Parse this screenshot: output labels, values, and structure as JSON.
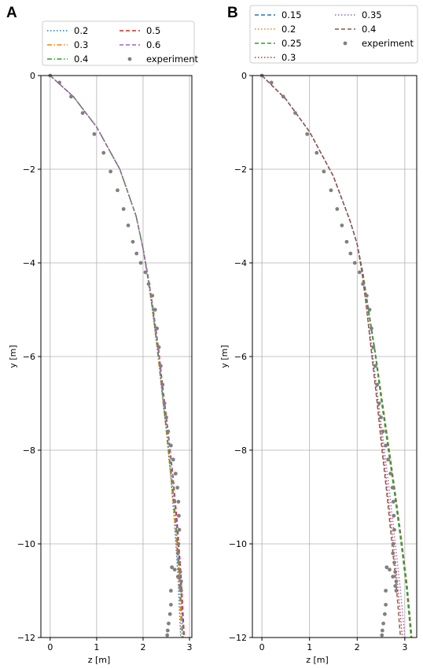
{
  "chart_data": [
    {
      "panel": "A",
      "type": "line",
      "xlabel": "z [m]",
      "ylabel": "y [m]",
      "xlim": [
        -0.2,
        3.05
      ],
      "ylim": [
        -12,
        0
      ],
      "xticks": [
        0,
        1,
        2,
        3
      ],
      "yticks": [
        0,
        -2,
        -4,
        -6,
        -8,
        -10,
        -12
      ],
      "grid": true,
      "legend_position": "above",
      "series": [
        {
          "name": "0.2",
          "style": "dotted",
          "color": "#1f77b4",
          "x": [
            0.0,
            0.5,
            1.0,
            1.5,
            1.85,
            2.0,
            2.1,
            2.2,
            2.3,
            2.4,
            2.5,
            2.6,
            2.68,
            2.75,
            2.81
          ],
          "y": [
            0.0,
            -0.45,
            -1.1,
            -2.0,
            -3.0,
            -3.7,
            -4.3,
            -5.0,
            -5.8,
            -6.7,
            -7.6,
            -8.6,
            -9.6,
            -10.7,
            -12.0
          ]
        },
        {
          "name": "0.3",
          "style": "dashdot",
          "color": "#ff7f0e",
          "x": [
            0.0,
            0.5,
            1.0,
            1.5,
            1.85,
            2.0,
            2.1,
            2.2,
            2.3,
            2.4,
            2.5,
            2.6,
            2.69,
            2.77,
            2.83
          ],
          "y": [
            0.0,
            -0.45,
            -1.1,
            -2.0,
            -3.0,
            -3.7,
            -4.3,
            -5.0,
            -5.8,
            -6.7,
            -7.6,
            -8.6,
            -9.6,
            -10.7,
            -12.0
          ]
        },
        {
          "name": "0.4",
          "style": "dashdot",
          "color": "#2ca02c",
          "x": [
            0.0,
            0.5,
            1.0,
            1.5,
            1.85,
            2.0,
            2.1,
            2.21,
            2.31,
            2.41,
            2.51,
            2.62,
            2.71,
            2.79,
            2.86
          ],
          "y": [
            0.0,
            -0.45,
            -1.1,
            -2.0,
            -3.0,
            -3.7,
            -4.3,
            -5.0,
            -5.8,
            -6.7,
            -7.6,
            -8.6,
            -9.6,
            -10.7,
            -12.0
          ]
        },
        {
          "name": "0.5",
          "style": "dashed",
          "color": "#d62728",
          "x": [
            0.0,
            0.5,
            1.0,
            1.5,
            1.85,
            2.0,
            2.11,
            2.22,
            2.33,
            2.43,
            2.54,
            2.65,
            2.74,
            2.82,
            2.89
          ],
          "y": [
            0.0,
            -0.45,
            -1.1,
            -2.0,
            -3.0,
            -3.7,
            -4.3,
            -5.0,
            -5.8,
            -6.7,
            -7.6,
            -8.6,
            -9.6,
            -10.7,
            -12.0
          ]
        },
        {
          "name": "0.6",
          "style": "dashed",
          "color": "#9467bd",
          "x": [
            0.0,
            0.5,
            1.0,
            1.5,
            1.85,
            2.0,
            2.11,
            2.22,
            2.32,
            2.42,
            2.53,
            2.64,
            2.72,
            2.8,
            2.87
          ],
          "y": [
            0.0,
            -0.45,
            -1.1,
            -2.0,
            -3.0,
            -3.7,
            -4.3,
            -5.0,
            -5.8,
            -6.7,
            -7.6,
            -8.6,
            -9.6,
            -10.7,
            -12.0
          ]
        }
      ],
      "experiment": {
        "name": "experiment",
        "color": "#808080",
        "x": [
          0.0,
          0.2,
          0.45,
          0.7,
          0.95,
          1.15,
          1.3,
          1.45,
          1.58,
          1.68,
          1.78,
          1.86,
          1.95,
          2.05,
          2.12,
          2.2,
          2.26,
          2.3,
          2.34,
          2.38,
          2.42,
          2.46,
          2.5,
          2.54,
          2.6,
          2.65,
          2.7,
          2.74,
          2.76,
          2.77,
          2.78,
          2.76,
          2.75,
          2.78,
          2.8,
          2.82,
          2.82,
          2.8,
          2.75,
          2.68,
          2.62,
          2.6,
          2.6,
          2.58,
          2.55,
          2.53,
          2.52
        ],
        "y": [
          0.0,
          -0.15,
          -0.45,
          -0.8,
          -1.25,
          -1.65,
          -2.05,
          -2.45,
          -2.85,
          -3.2,
          -3.55,
          -3.8,
          -4.0,
          -4.2,
          -4.45,
          -4.7,
          -5.0,
          -5.4,
          -5.8,
          -6.2,
          -6.6,
          -7.0,
          -7.3,
          -7.6,
          -7.9,
          -8.2,
          -8.5,
          -8.8,
          -9.1,
          -9.4,
          -9.7,
          -10.0,
          -10.2,
          -10.4,
          -10.6,
          -10.8,
          -11.0,
          -10.9,
          -10.7,
          -10.55,
          -10.5,
          -11.0,
          -11.3,
          -11.5,
          -11.7,
          -11.85,
          -11.95
        ]
      }
    },
    {
      "panel": "B",
      "type": "line",
      "xlabel": "z [m]",
      "ylabel": "y [m]",
      "xlim": [
        -0.2,
        3.25
      ],
      "ylim": [
        -12,
        0
      ],
      "xticks": [
        0,
        1,
        2,
        3
      ],
      "yticks": [
        0,
        -2,
        -4,
        -6,
        -8,
        -10,
        -12
      ],
      "grid": true,
      "legend_position": "above",
      "series": [
        {
          "name": "0.15",
          "style": "dashed",
          "color": "#1f77b4",
          "x": [
            0.0,
            0.5,
            1.0,
            1.5,
            1.85,
            2.0,
            2.12,
            2.24,
            2.38,
            2.52,
            2.66,
            2.8,
            2.93,
            3.05,
            3.15
          ],
          "y": [
            0.0,
            -0.5,
            -1.2,
            -2.15,
            -3.1,
            -3.6,
            -4.2,
            -5.0,
            -5.9,
            -6.9,
            -7.9,
            -8.9,
            -9.9,
            -10.9,
            -12.0
          ]
        },
        {
          "name": "0.2",
          "style": "dotted",
          "color": "#ff7f0e",
          "x": [
            0.0,
            0.5,
            1.0,
            1.5,
            1.85,
            2.0,
            2.12,
            2.24,
            2.38,
            2.52,
            2.66,
            2.8,
            2.93,
            3.05,
            3.15
          ],
          "y": [
            0.0,
            -0.5,
            -1.2,
            -2.15,
            -3.1,
            -3.6,
            -4.2,
            -5.0,
            -5.9,
            -6.9,
            -7.9,
            -8.9,
            -9.9,
            -10.9,
            -12.0
          ]
        },
        {
          "name": "0.25",
          "style": "dashed",
          "color": "#2ca02c",
          "x": [
            0.0,
            0.5,
            1.0,
            1.5,
            1.85,
            2.0,
            2.11,
            2.23,
            2.37,
            2.5,
            2.64,
            2.78,
            2.91,
            3.03,
            3.13
          ],
          "y": [
            0.0,
            -0.5,
            -1.2,
            -2.15,
            -3.1,
            -3.6,
            -4.2,
            -5.0,
            -5.9,
            -6.9,
            -7.9,
            -8.9,
            -9.9,
            -10.9,
            -12.0
          ]
        },
        {
          "name": "0.3",
          "style": "dotted",
          "color": "#d62728",
          "x": [
            0.0,
            0.5,
            1.0,
            1.5,
            1.85,
            2.0,
            2.1,
            2.2,
            2.3,
            2.42,
            2.53,
            2.64,
            2.75,
            2.85,
            2.95
          ],
          "y": [
            0.0,
            -0.5,
            -1.2,
            -2.15,
            -3.1,
            -3.6,
            -4.2,
            -5.0,
            -5.9,
            -6.9,
            -7.9,
            -8.9,
            -9.9,
            -10.9,
            -12.0
          ]
        },
        {
          "name": "0.35",
          "style": "dotted",
          "color": "#9467bd",
          "x": [
            0.0,
            0.5,
            1.0,
            1.5,
            1.85,
            2.0,
            2.11,
            2.21,
            2.32,
            2.44,
            2.56,
            2.68,
            2.79,
            2.9,
            3.0
          ],
          "y": [
            0.0,
            -0.5,
            -1.2,
            -2.15,
            -3.1,
            -3.6,
            -4.2,
            -5.0,
            -5.9,
            -6.9,
            -7.9,
            -8.9,
            -9.9,
            -10.9,
            -12.0
          ]
        },
        {
          "name": "0.4",
          "style": "dashed",
          "color": "#8c564b",
          "x": [
            0.0,
            0.5,
            1.0,
            1.5,
            1.85,
            2.0,
            2.1,
            2.2,
            2.3,
            2.41,
            2.51,
            2.62,
            2.72,
            2.82,
            2.91
          ],
          "y": [
            0.0,
            -0.5,
            -1.2,
            -2.15,
            -3.1,
            -3.6,
            -4.2,
            -5.0,
            -5.9,
            -6.9,
            -7.9,
            -8.9,
            -9.9,
            -10.9,
            -12.0
          ]
        }
      ],
      "experiment": {
        "name": "experiment",
        "color": "#808080",
        "x": [
          0.0,
          0.2,
          0.45,
          0.7,
          0.95,
          1.15,
          1.3,
          1.45,
          1.58,
          1.68,
          1.78,
          1.86,
          1.95,
          2.05,
          2.12,
          2.2,
          2.26,
          2.3,
          2.34,
          2.38,
          2.42,
          2.46,
          2.5,
          2.54,
          2.6,
          2.65,
          2.7,
          2.74,
          2.76,
          2.77,
          2.78,
          2.76,
          2.75,
          2.78,
          2.8,
          2.82,
          2.82,
          2.8,
          2.75,
          2.68,
          2.62,
          2.6,
          2.6,
          2.58,
          2.55,
          2.53,
          2.52
        ],
        "y": [
          0.0,
          -0.15,
          -0.45,
          -0.8,
          -1.25,
          -1.65,
          -2.05,
          -2.45,
          -2.85,
          -3.2,
          -3.55,
          -3.8,
          -4.0,
          -4.2,
          -4.45,
          -4.7,
          -5.0,
          -5.4,
          -5.8,
          -6.2,
          -6.6,
          -7.0,
          -7.3,
          -7.6,
          -7.9,
          -8.2,
          -8.5,
          -8.8,
          -9.1,
          -9.4,
          -9.7,
          -10.0,
          -10.2,
          -10.4,
          -10.6,
          -10.8,
          -11.0,
          -10.9,
          -10.7,
          -10.55,
          -10.5,
          -11.0,
          -11.3,
          -11.5,
          -11.7,
          -11.85,
          -11.95
        ]
      }
    }
  ]
}
